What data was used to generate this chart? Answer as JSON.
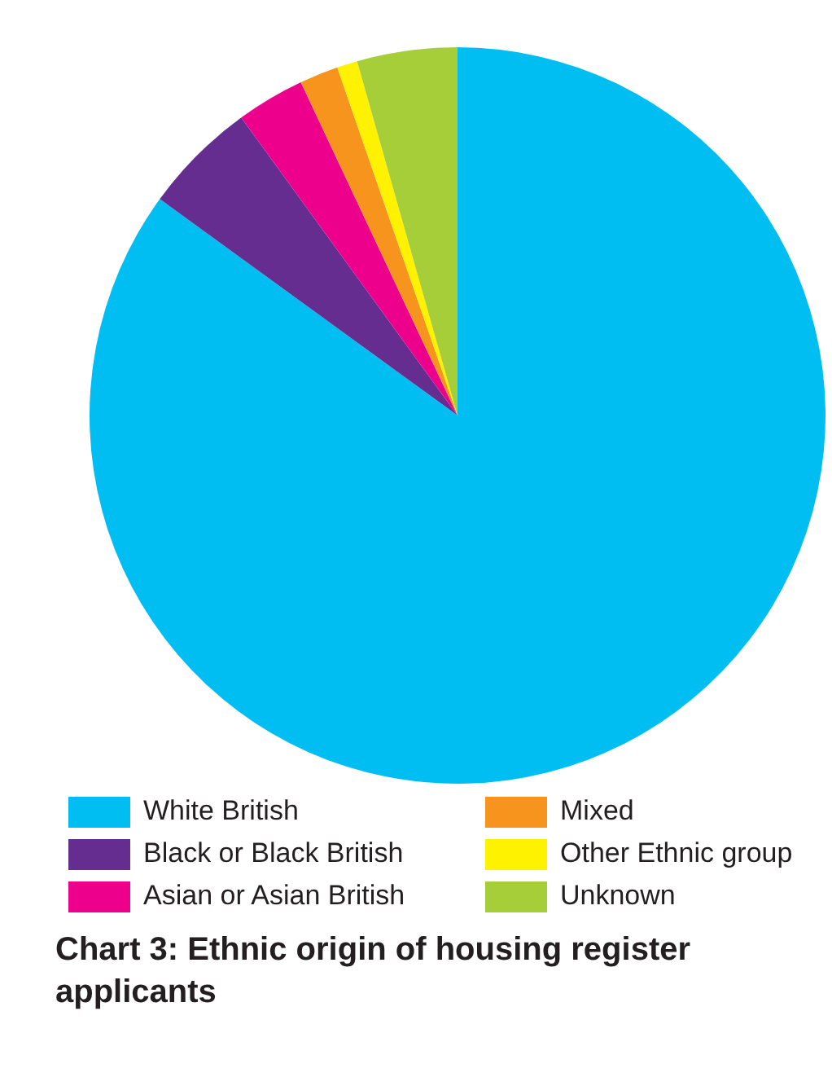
{
  "chart_data": {
    "type": "pie",
    "title": "Chart 3: Ethnic origin of housing register applicants",
    "categories": [
      "White British",
      "Black or Black British",
      "Asian or Asian British",
      "Mixed",
      "Other Ethnic group",
      "Unknown"
    ],
    "values": [
      85,
      5,
      3,
      1.7,
      0.9,
      4.4
    ],
    "colors": [
      "#00bef2",
      "#662d91",
      "#ec008c",
      "#f7941d",
      "#fff200",
      "#a6ce39"
    ],
    "legend": "bottom"
  }
}
